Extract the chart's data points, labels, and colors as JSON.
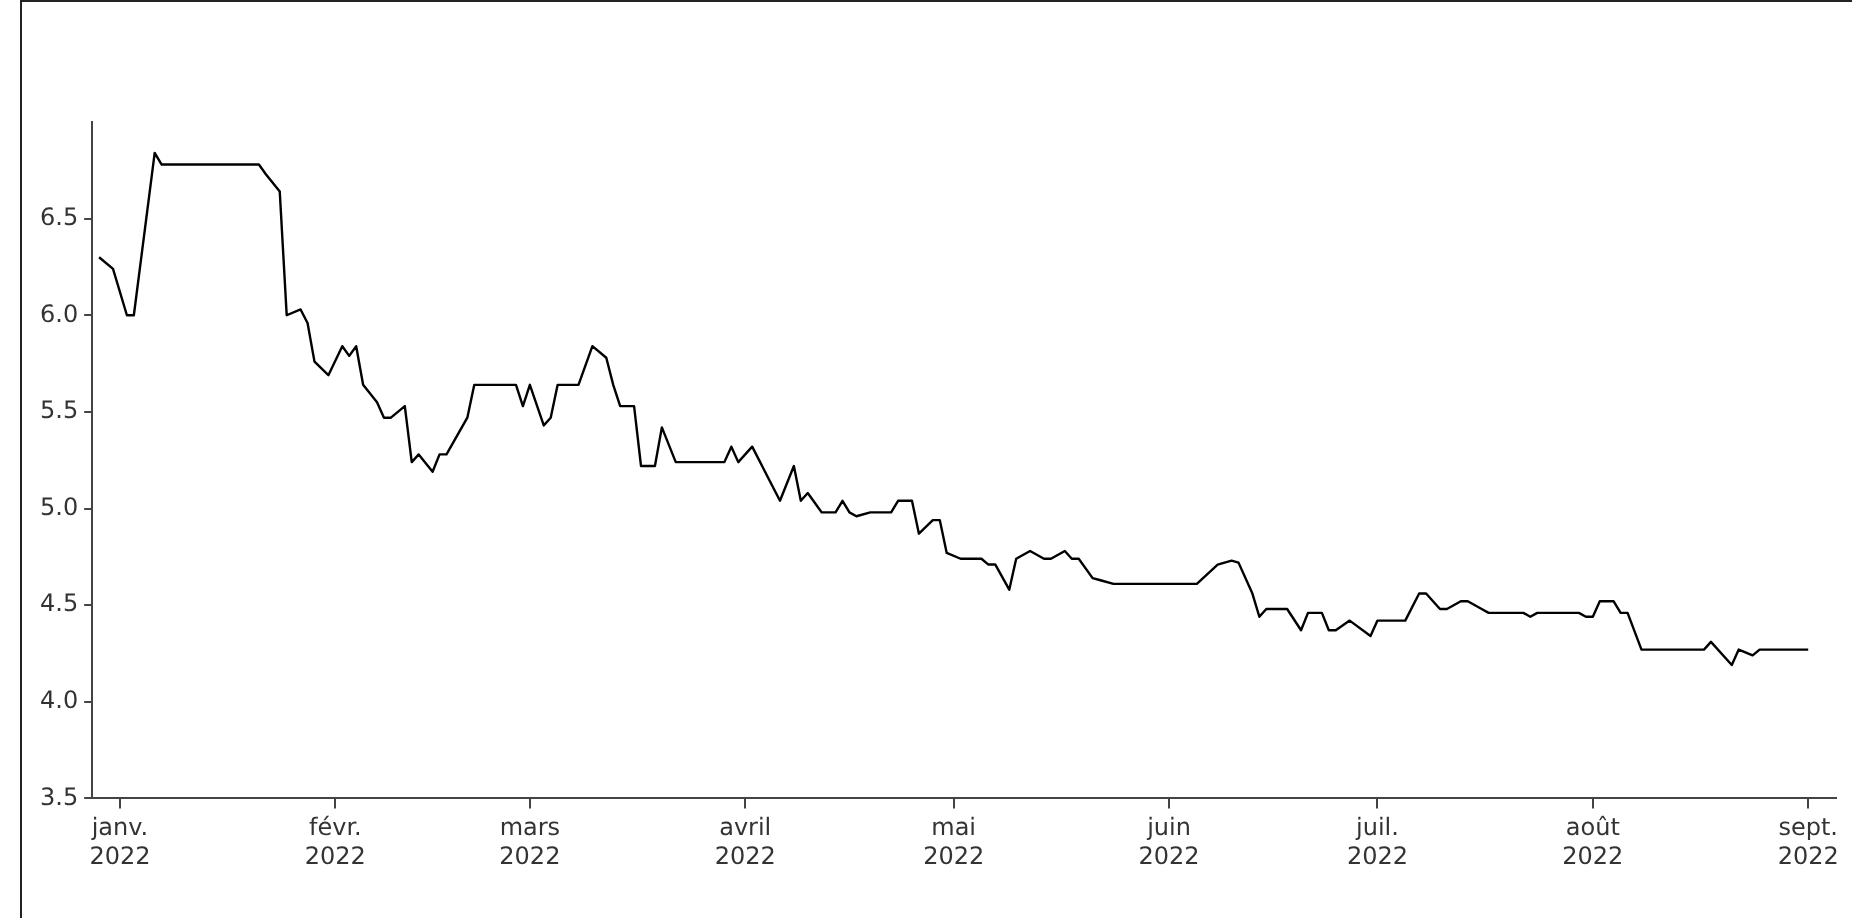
{
  "chart_data": {
    "type": "line",
    "x": [
      "2021-12-29",
      "2021-12-31",
      "2022-01-02",
      "2022-01-03",
      "2022-01-06",
      "2022-01-07",
      "2022-01-21",
      "2022-01-22",
      "2022-01-24",
      "2022-01-25",
      "2022-01-27",
      "2022-01-28",
      "2022-01-29",
      "2022-01-31",
      "2022-02-02",
      "2022-02-03",
      "2022-02-04",
      "2022-02-05",
      "2022-02-07",
      "2022-02-08",
      "2022-02-09",
      "2022-02-11",
      "2022-02-12",
      "2022-02-13",
      "2022-02-15",
      "2022-02-16",
      "2022-02-17",
      "2022-02-20",
      "2022-02-21",
      "2022-02-27",
      "2022-02-28",
      "2022-03-01",
      "2022-03-03",
      "2022-03-04",
      "2022-03-05",
      "2022-03-08",
      "2022-03-10",
      "2022-03-12",
      "2022-03-13",
      "2022-03-14",
      "2022-03-16",
      "2022-03-17",
      "2022-03-19",
      "2022-03-20",
      "2022-03-22",
      "2022-03-29",
      "2022-03-30",
      "2022-03-31",
      "2022-04-02",
      "2022-04-06",
      "2022-04-08",
      "2022-04-09",
      "2022-04-10",
      "2022-04-12",
      "2022-04-14",
      "2022-04-15",
      "2022-04-16",
      "2022-04-17",
      "2022-04-19",
      "2022-04-22",
      "2022-04-23",
      "2022-04-25",
      "2022-04-26",
      "2022-04-28",
      "2022-04-29",
      "2022-04-30",
      "2022-05-02",
      "2022-05-05",
      "2022-05-06",
      "2022-05-07",
      "2022-05-09",
      "2022-05-10",
      "2022-05-12",
      "2022-05-14",
      "2022-05-15",
      "2022-05-17",
      "2022-05-18",
      "2022-05-19",
      "2022-05-21",
      "2022-05-22",
      "2022-05-24",
      "2022-06-05",
      "2022-06-08",
      "2022-06-10",
      "2022-06-11",
      "2022-06-13",
      "2022-06-14",
      "2022-06-15",
      "2022-06-18",
      "2022-06-20",
      "2022-06-21",
      "2022-06-23",
      "2022-06-24",
      "2022-06-25",
      "2022-06-27",
      "2022-06-30",
      "2022-07-01",
      "2022-07-05",
      "2022-07-07",
      "2022-07-08",
      "2022-07-10",
      "2022-07-11",
      "2022-07-13",
      "2022-07-14",
      "2022-07-16",
      "2022-07-17",
      "2022-07-22",
      "2022-07-23",
      "2022-07-24",
      "2022-07-30",
      "2022-07-31",
      "2022-08-01",
      "2022-08-02",
      "2022-08-04",
      "2022-08-05",
      "2022-08-06",
      "2022-08-08",
      "2022-08-17",
      "2022-08-18",
      "2022-08-21",
      "2022-08-22",
      "2022-08-24",
      "2022-08-25",
      "2022-09-01"
    ],
    "series": [
      {
        "color": "#000000",
        "values": [
          6.3,
          6.24,
          6.0,
          6.0,
          6.84,
          6.78,
          6.78,
          6.73,
          6.64,
          6.0,
          6.03,
          5.96,
          5.76,
          5.69,
          5.84,
          5.79,
          5.84,
          5.64,
          5.55,
          5.47,
          5.47,
          5.53,
          5.24,
          5.28,
          5.19,
          5.28,
          5.28,
          5.47,
          5.64,
          5.64,
          5.53,
          5.64,
          5.43,
          5.47,
          5.64,
          5.64,
          5.84,
          5.78,
          5.64,
          5.53,
          5.53,
          5.22,
          5.22,
          5.42,
          5.24,
          5.24,
          5.32,
          5.24,
          5.32,
          5.04,
          5.22,
          5.04,
          5.08,
          4.98,
          4.98,
          5.04,
          4.98,
          4.96,
          4.98,
          4.98,
          5.04,
          5.04,
          4.87,
          4.94,
          4.94,
          4.77,
          4.74,
          4.74,
          4.71,
          4.71,
          4.58,
          4.74,
          4.78,
          4.74,
          4.74,
          4.78,
          4.74,
          4.74,
          4.64,
          4.63,
          4.61,
          4.61,
          4.71,
          4.73,
          4.72,
          4.56,
          4.44,
          4.48,
          4.48,
          4.37,
          4.46,
          4.46,
          4.37,
          4.37,
          4.42,
          4.34,
          4.42,
          4.42,
          4.56,
          4.56,
          4.48,
          4.48,
          4.52,
          4.52,
          4.48,
          4.46,
          4.46,
          4.44,
          4.46,
          4.46,
          4.44,
          4.44,
          4.52,
          4.52,
          4.46,
          4.46,
          4.27,
          4.27,
          4.31,
          4.19,
          4.27,
          4.24,
          4.27,
          4.27
        ]
      }
    ],
    "xlim": [
      "2021-12-28",
      "2022-09-05"
    ],
    "xticks": [
      {
        "value": "2022-01-01",
        "label": "janv. 2022"
      },
      {
        "value": "2022-02-01",
        "label": "févr. 2022"
      },
      {
        "value": "2022-03-01",
        "label": "mars 2022"
      },
      {
        "value": "2022-04-01",
        "label": "avril 2022"
      },
      {
        "value": "2022-05-01",
        "label": "mai 2022"
      },
      {
        "value": "2022-06-01",
        "label": "juin 2022"
      },
      {
        "value": "2022-07-01",
        "label": "juil. 2022"
      },
      {
        "value": "2022-08-01",
        "label": "août 2022"
      },
      {
        "value": "2022-09-01",
        "label": "sept. 2022"
      }
    ],
    "ylim": [
      3.5,
      7.0
    ],
    "yticks": [
      3.5,
      {
        "value": 4,
        "label": "4.0"
      },
      4.5,
      {
        "value": 5,
        "label": "5.0"
      },
      5.5,
      {
        "value": 6,
        "label": "6.0"
      },
      6.5
    ],
    "grid": false,
    "legend": false,
    "line_style": "solid"
  }
}
